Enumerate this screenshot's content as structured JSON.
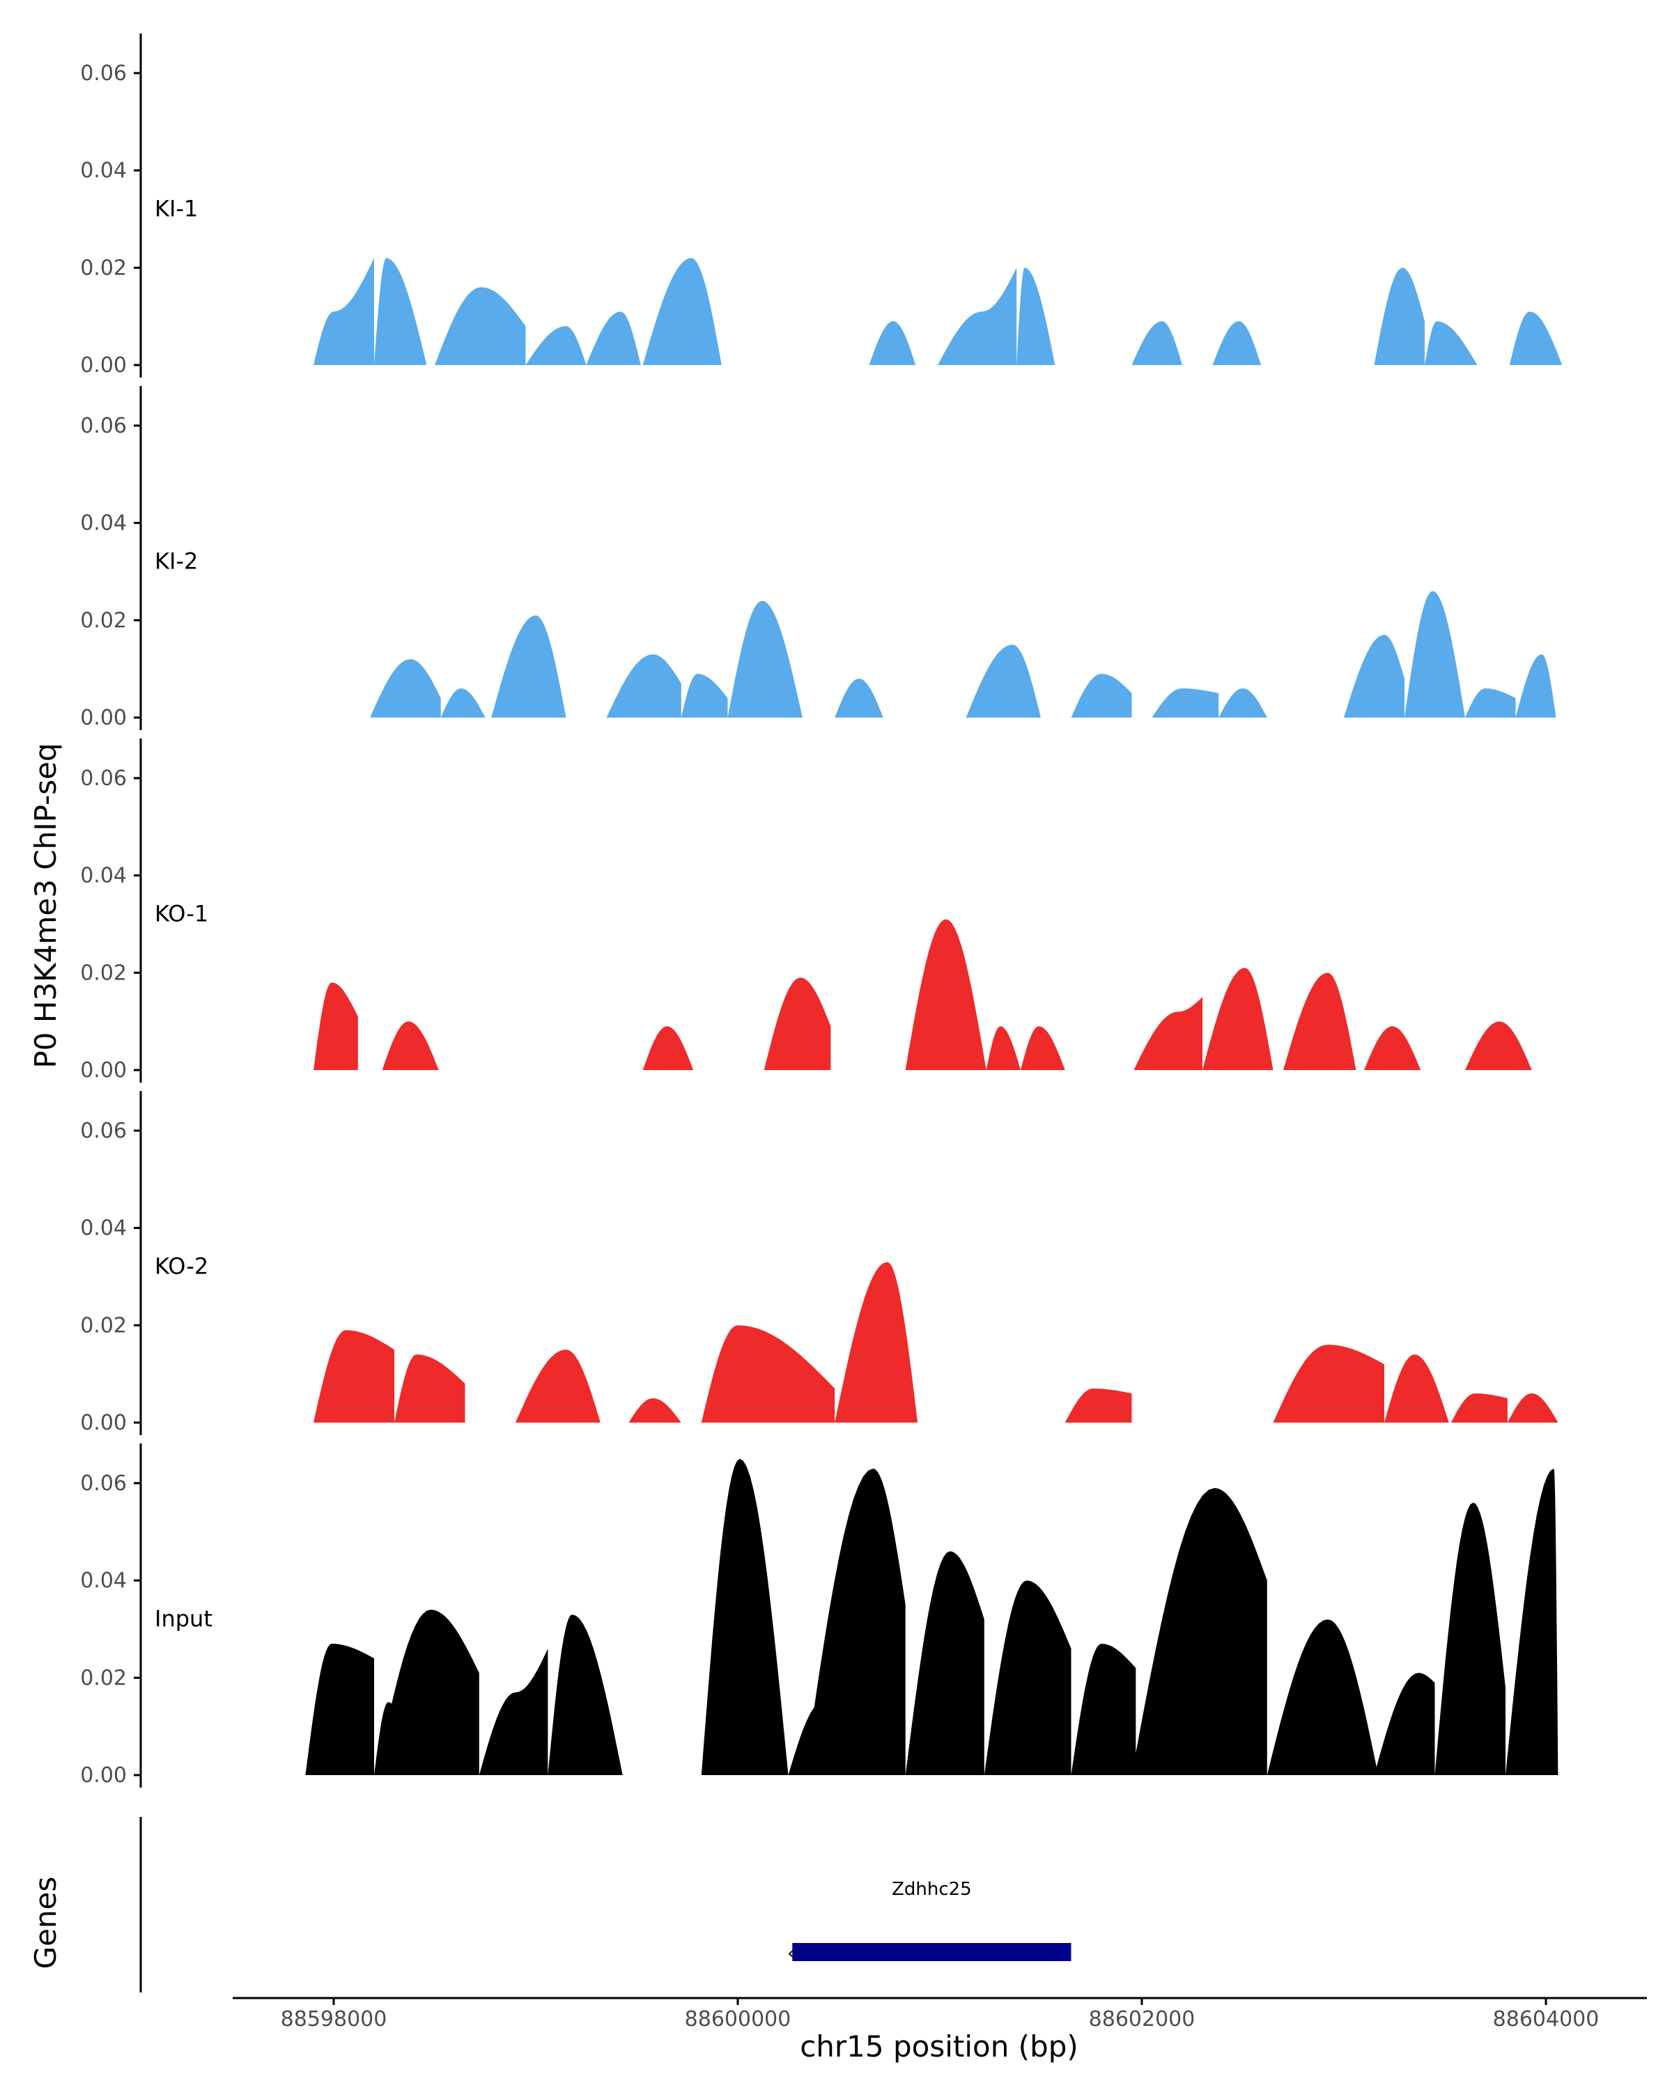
{
  "chart_data": {
    "type": "area",
    "ylabel": "P0 H3K4me3 ChIP-seq",
    "xlabel": "chr15 position (bp)",
    "genes_label": "Genes",
    "xlim": [
      88597500,
      88604500
    ],
    "ylim": [
      0,
      0.065
    ],
    "x_ticks": [
      88598000,
      88600000,
      88602000,
      88604000
    ],
    "x_tick_labels": [
      "88598000",
      "88600000",
      "88602000",
      "88604000"
    ],
    "y_ticks": [
      0,
      0.02,
      0.04,
      0.06
    ],
    "y_tick_labels": [
      "0.00",
      "0.02",
      "0.04",
      "0.06"
    ],
    "colors": {
      "KI": "#5aabeb",
      "KO": "#ee2a2a",
      "Input": "#000000",
      "gene": "#00008b",
      "axis": "#000000"
    },
    "tracks": [
      {
        "name": "KI-1",
        "color": "#5aabeb",
        "peaks": [
          [
            88597900,
            88598000,
            88598200,
            0.011,
            0.022
          ],
          [
            88598200,
            88598260,
            88598460,
            0.022
          ],
          [
            88598500,
            88598730,
            88598950,
            0.016,
            0.008
          ],
          [
            88598950,
            88599150,
            88599250,
            0.008
          ],
          [
            88599250,
            88599420,
            88599520,
            0.011
          ],
          [
            88599530,
            88599770,
            88599920,
            0.022
          ],
          [
            88600650,
            88600770,
            88600880,
            0.009
          ],
          [
            88600990,
            88601210,
            88601380,
            0.011,
            0.02
          ],
          [
            88601380,
            88601420,
            88601570,
            0.02
          ],
          [
            88601950,
            88602100,
            88602200,
            0.009
          ],
          [
            88602350,
            88602480,
            88602590,
            0.009
          ],
          [
            88603150,
            88603290,
            88603400,
            0.02,
            0.009
          ],
          [
            88603400,
            88603460,
            88603660,
            0.009
          ],
          [
            88603820,
            88603920,
            88604080,
            0.011
          ]
        ]
      },
      {
        "name": "KI-2",
        "color": "#5aabeb",
        "peaks": [
          [
            88598180,
            88598380,
            88598530,
            0.012,
            0.004
          ],
          [
            88598530,
            88598630,
            88598750,
            0.006
          ],
          [
            88598780,
            88599000,
            88599150,
            0.021
          ],
          [
            88599350,
            88599580,
            88599720,
            0.013,
            0.007
          ],
          [
            88599720,
            88599800,
            88599950,
            0.009,
            0.004
          ],
          [
            88599950,
            88600120,
            88600320,
            0.024
          ],
          [
            88600480,
            88600600,
            88600720,
            0.008
          ],
          [
            88601130,
            88601360,
            88601500,
            0.015
          ],
          [
            88601650,
            88601800,
            88601950,
            0.009,
            0.005
          ],
          [
            88602050,
            88602200,
            88602380,
            0.006,
            0.005
          ],
          [
            88602380,
            88602500,
            88602620,
            0.006
          ],
          [
            88603000,
            88603200,
            88603300,
            0.017,
            0.008
          ],
          [
            88603300,
            88603440,
            88603600,
            0.026
          ],
          [
            88603600,
            88603700,
            88603850,
            0.006,
            0.004
          ],
          [
            88603850,
            88603980,
            88604050,
            0.013
          ]
        ]
      },
      {
        "name": "KO-1",
        "color": "#ee2a2a",
        "peaks": [
          [
            88597900,
            88597990,
            88598120,
            0.018,
            0.011
          ],
          [
            88598240,
            88598370,
            88598520,
            0.01
          ],
          [
            88599530,
            88599650,
            88599780,
            0.009
          ],
          [
            88600130,
            88600310,
            88600460,
            0.019,
            0.009
          ],
          [
            88600830,
            88601030,
            88601230,
            0.031
          ],
          [
            88601230,
            88601300,
            88601400,
            0.009
          ],
          [
            88601400,
            88601490,
            88601620,
            0.009
          ],
          [
            88601960,
            88602180,
            88602300,
            0.012,
            0.015
          ],
          [
            88602300,
            88602510,
            88602650,
            0.021
          ],
          [
            88602700,
            88602920,
            88603060,
            0.02
          ],
          [
            88603100,
            88603240,
            88603380,
            0.009
          ],
          [
            88603600,
            88603770,
            88603930,
            0.01
          ]
        ]
      },
      {
        "name": "KO-2",
        "color": "#ee2a2a",
        "peaks": [
          [
            88597900,
            88598060,
            88598300,
            0.019,
            0.015
          ],
          [
            88598300,
            88598410,
            88598650,
            0.014,
            0.008
          ],
          [
            88598900,
            88599150,
            88599320,
            0.015
          ],
          [
            88599460,
            88599580,
            88599720,
            0.005
          ],
          [
            88599820,
            88600000,
            88600480,
            0.02,
            0.007
          ],
          [
            88600480,
            88600740,
            88600890,
            0.033
          ],
          [
            88601620,
            88601760,
            88601950,
            0.007,
            0.006
          ],
          [
            88602650,
            88602920,
            88603200,
            0.016,
            0.012
          ],
          [
            88603200,
            88603350,
            88603520,
            0.014
          ],
          [
            88603530,
            88603650,
            88603810,
            0.006,
            0.005
          ],
          [
            88603810,
            88603930,
            88604060,
            0.006
          ]
        ]
      },
      {
        "name": "Input",
        "color": "#000000",
        "peaks": [
          [
            88597860,
            88597990,
            88598200,
            0.027,
            0.024
          ],
          [
            88598200,
            88598270,
            88598400,
            0.015
          ],
          [
            88598210,
            88598480,
            88598720,
            0.034,
            0.021
          ],
          [
            88598720,
            88598900,
            88599060,
            0.017,
            0.026
          ],
          [
            88599060,
            88599180,
            88599430,
            0.033
          ],
          [
            88599820,
            88600010,
            88600250,
            0.065
          ],
          [
            88600250,
            88600420,
            88600480,
            0.015
          ],
          [
            88600330,
            88600670,
            88600830,
            0.063,
            0.035
          ],
          [
            88600830,
            88601050,
            88601220,
            0.046,
            0.032
          ],
          [
            88601220,
            88601430,
            88601650,
            0.04,
            0.026
          ],
          [
            88601650,
            88601800,
            88601970,
            0.027,
            0.022
          ],
          [
            88601950,
            88602360,
            88602620,
            0.059,
            0.04
          ],
          [
            88602620,
            88602920,
            88603170,
            0.032
          ],
          [
            88603150,
            88603370,
            88603450,
            0.021,
            0.019
          ],
          [
            88603450,
            88603640,
            88603800,
            0.056,
            0.018
          ],
          [
            88603800,
            88604040,
            88604060,
            0.063
          ]
        ]
      }
    ],
    "gene": {
      "name": "Zdhhc25",
      "start": 88600270,
      "end": 88601650,
      "strand": "-"
    }
  }
}
